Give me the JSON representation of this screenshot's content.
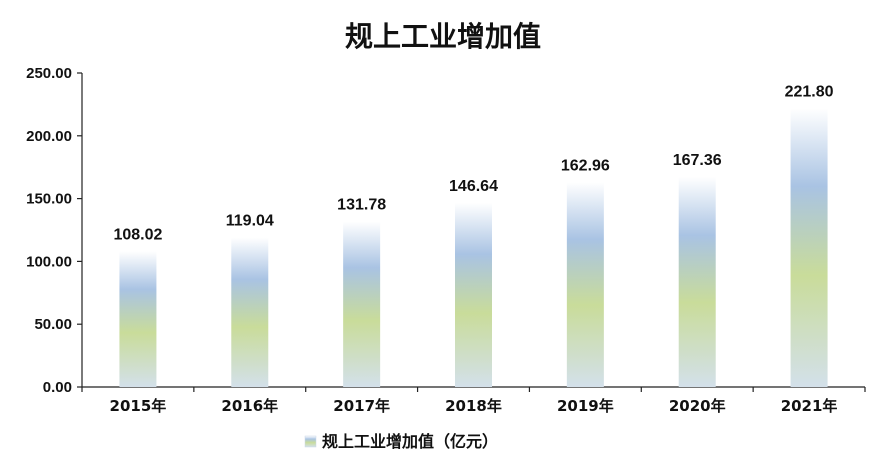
{
  "chart_data": {
    "type": "bar",
    "title": "规上工业增加值",
    "categories": [
      "2015年",
      "2016年",
      "2017年",
      "2018年",
      "2019年",
      "2020年",
      "2021年"
    ],
    "series": [
      {
        "name": "规上工业增加值（亿元）",
        "values": [
          108.02,
          119.04,
          131.78,
          146.64,
          162.96,
          167.36,
          221.8
        ]
      }
    ],
    "data_labels": [
      "108.02",
      "119.04",
      "131.78",
      "146.64",
      "162.96",
      "167.36",
      "221.80"
    ],
    "y_ticks": [
      "0.00",
      "50.00",
      "100.00",
      "150.00",
      "200.00",
      "250.00"
    ],
    "ylim": [
      0,
      250
    ],
    "grid": false,
    "legend_position": "bottom",
    "colors": {
      "gradient_top": "#ffffff",
      "gradient_blue": "#a9c3e3",
      "gradient_green": "#c9dc9a",
      "gradient_bottom": "#d3e0ea"
    }
  }
}
